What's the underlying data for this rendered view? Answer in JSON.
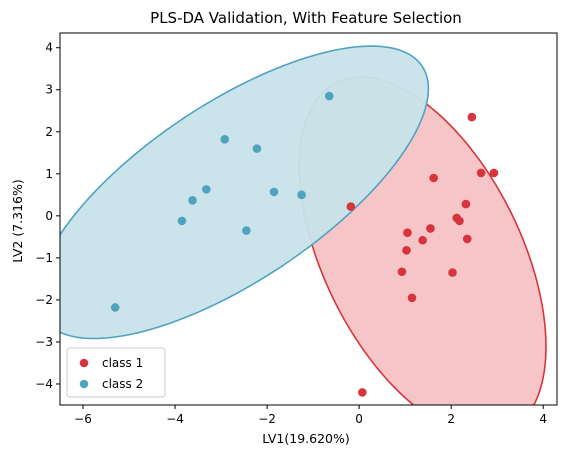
{
  "chart_data": {
    "type": "scatter",
    "title": "PLS-DA Validation, With Feature Selection",
    "xlabel": "LV1(19.620%)",
    "ylabel": "LV2 (7.316%)",
    "xlim": [
      -6.5,
      4.3
    ],
    "ylim": [
      -4.5,
      4.35
    ],
    "xticks": [
      -6,
      -4,
      -2,
      0,
      2,
      4
    ],
    "yticks": [
      -4,
      -3,
      -2,
      -1,
      0,
      1,
      2,
      3,
      4
    ],
    "grid": false,
    "legend_position": "lower-left",
    "series": [
      {
        "name": "class 1",
        "color": "#d8343d",
        "fill": "#f4c2c4",
        "ellipse": {
          "cx": 1.38,
          "cy": -0.97,
          "rx": 2.18,
          "ry": 4.55,
          "angle_deg": 23
        },
        "points": [
          {
            "x": 2.45,
            "y": 2.35
          },
          {
            "x": 2.65,
            "y": 1.02
          },
          {
            "x": 2.93,
            "y": 1.02
          },
          {
            "x": 1.62,
            "y": 0.9
          },
          {
            "x": 2.32,
            "y": 0.28
          },
          {
            "x": -0.18,
            "y": 0.22
          },
          {
            "x": 2.12,
            "y": -0.05
          },
          {
            "x": 2.18,
            "y": -0.12
          },
          {
            "x": 1.55,
            "y": -0.3
          },
          {
            "x": 1.05,
            "y": -0.4
          },
          {
            "x": 2.35,
            "y": -0.55
          },
          {
            "x": 1.38,
            "y": -0.58
          },
          {
            "x": 1.03,
            "y": -0.82
          },
          {
            "x": 0.93,
            "y": -1.33
          },
          {
            "x": 2.03,
            "y": -1.35
          },
          {
            "x": 1.15,
            "y": -1.95
          },
          {
            "x": 0.07,
            "y": -4.2
          }
        ]
      },
      {
        "name": "class 2",
        "color": "#4fa3bf",
        "fill": "#c8e3ea",
        "ellipse": {
          "cx": -2.75,
          "cy": 0.56,
          "rx": 5.1,
          "ry": 2.05,
          "angle_deg": 37
        },
        "points": [
          {
            "x": -0.65,
            "y": 2.85
          },
          {
            "x": -2.92,
            "y": 1.82
          },
          {
            "x": -2.22,
            "y": 1.6
          },
          {
            "x": -3.32,
            "y": 0.63
          },
          {
            "x": -1.85,
            "y": 0.57
          },
          {
            "x": -1.25,
            "y": 0.5
          },
          {
            "x": -3.62,
            "y": 0.37
          },
          {
            "x": -3.85,
            "y": -0.12
          },
          {
            "x": -2.45,
            "y": -0.35
          },
          {
            "x": -5.3,
            "y": -2.18
          }
        ]
      }
    ]
  }
}
